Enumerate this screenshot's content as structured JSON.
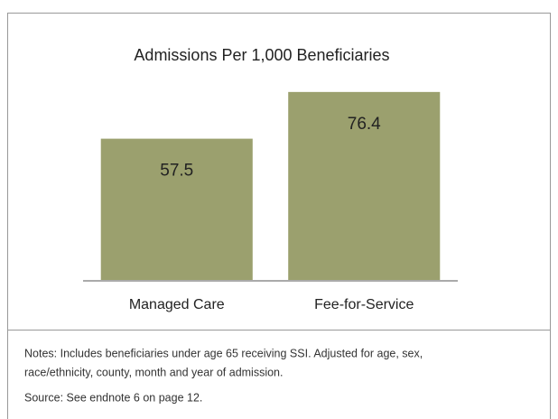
{
  "chart_data": {
    "type": "bar",
    "title": "Admissions Per 1,000 Beneficiaries",
    "categories": [
      "Managed Care",
      "Fee-for-Service"
    ],
    "values": [
      57.5,
      76.4
    ],
    "color": "#9ba06e",
    "ylim": [
      0,
      80
    ],
    "notes": [
      "Notes: Includes beneficiaries under age 65 receiving SSI. Adjusted for age, sex,",
      "race/ethnicity, county, month and year of admission."
    ],
    "source": "Source: See endnote 6 on page 12."
  }
}
